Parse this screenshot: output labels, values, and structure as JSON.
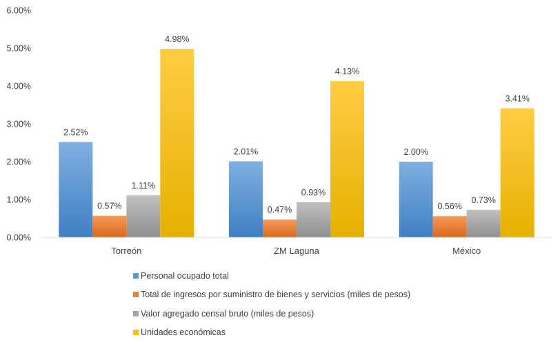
{
  "chart_data": {
    "type": "bar",
    "title": "",
    "xlabel": "",
    "ylabel": "",
    "ylim": [
      0,
      6
    ],
    "yticks": [
      "0.00%",
      "1.00%",
      "2.00%",
      "3.00%",
      "4.00%",
      "5.00%",
      "6.00%"
    ],
    "categories": [
      "Torreón",
      "ZM Laguna",
      "México"
    ],
    "series": [
      {
        "name": "Personal ocupado total",
        "values": [
          2.52,
          2.01,
          2.0
        ],
        "labels": [
          "2.52%",
          "2.01%",
          "2.00%"
        ],
        "color": "#5b9bd5",
        "color_light": "#7fb0e0",
        "color_dark": "#3f7fc4"
      },
      {
        "name": "Total de ingresos por suministro de bienes y servicios (miles de pesos)",
        "values": [
          0.57,
          0.47,
          0.56
        ],
        "labels": [
          "0.57%",
          "0.47%",
          "0.56%"
        ],
        "color": "#ed7d31",
        "color_light": "#f59a5a",
        "color_dark": "#d9681c"
      },
      {
        "name": "Valor agregado censal bruto (miles de pesos)",
        "values": [
          1.11,
          0.93,
          0.73
        ],
        "labels": [
          "1.11%",
          "0.93%",
          "0.73%"
        ],
        "color": "#a5a5a5",
        "color_light": "#c0c0c0",
        "color_dark": "#8f8f8f"
      },
      {
        "name": "Unidades económicas",
        "values": [
          4.98,
          4.13,
          3.41
        ],
        "labels": [
          "4.98%",
          "4.13%",
          "3.41%"
        ],
        "color": "#ffc000",
        "color_light": "#ffcc44",
        "color_dark": "#e6b000"
      }
    ],
    "grid": false,
    "legend_position": "bottom"
  }
}
